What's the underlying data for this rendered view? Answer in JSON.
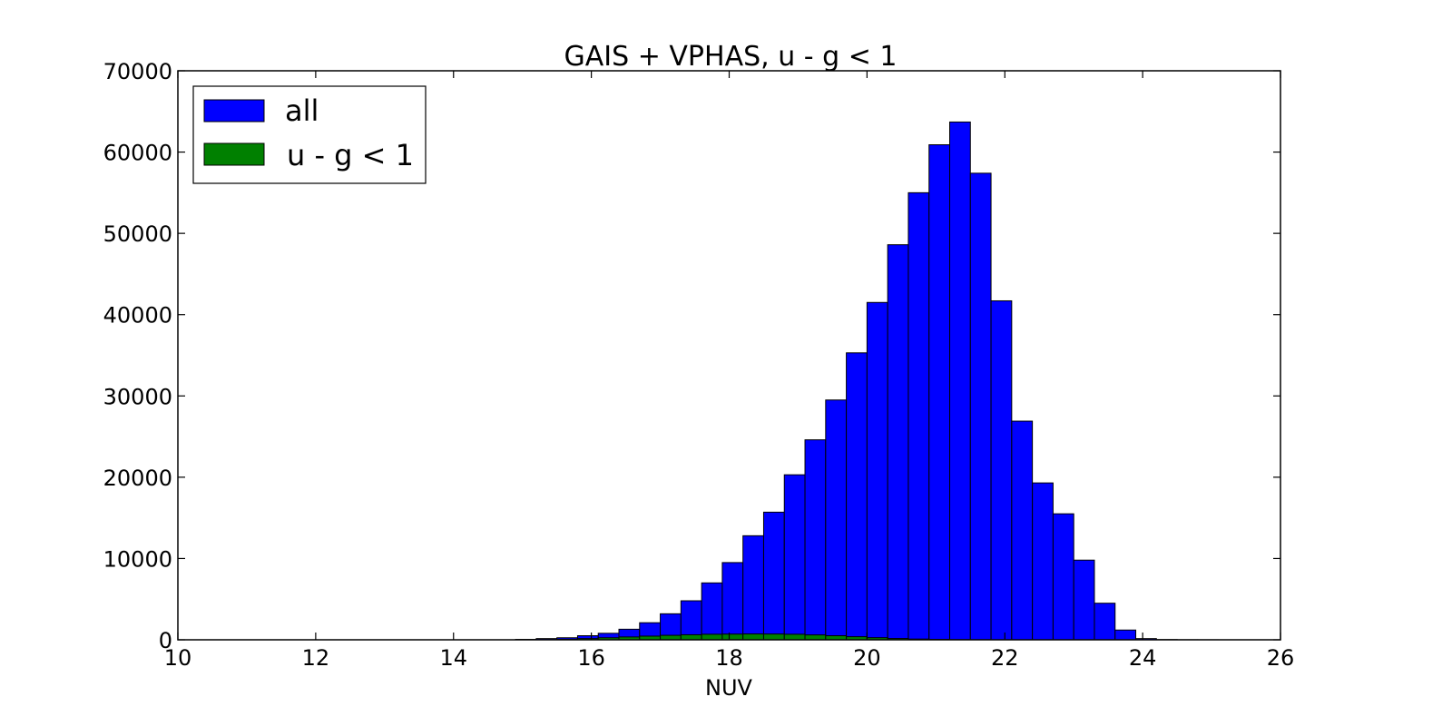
{
  "chart_data": {
    "type": "bar",
    "title": "GAIS + VPHAS, u - g < 1",
    "xlabel": "NUV",
    "ylabel": "",
    "xlim": [
      10,
      26
    ],
    "ylim": [
      0,
      70000
    ],
    "xticks": [
      "10",
      "12",
      "14",
      "16",
      "18",
      "20",
      "22",
      "24",
      "26"
    ],
    "yticks": [
      "0",
      "10000",
      "20000",
      "30000",
      "40000",
      "50000",
      "60000",
      "70000"
    ],
    "grid": false,
    "legend": "top-left",
    "bin_width": 0.3,
    "series": [
      {
        "name": "all",
        "color": "#0000ff",
        "bins": [
          [
            14.9,
            50
          ],
          [
            15.2,
            150
          ],
          [
            15.5,
            250
          ],
          [
            15.8,
            500
          ],
          [
            16.1,
            800
          ],
          [
            16.4,
            1300
          ],
          [
            16.7,
            2100
          ],
          [
            17.0,
            3200
          ],
          [
            17.3,
            4800
          ],
          [
            17.6,
            7000
          ],
          [
            17.9,
            9500
          ],
          [
            18.2,
            12800
          ],
          [
            18.5,
            15700
          ],
          [
            18.8,
            20300
          ],
          [
            19.1,
            24600
          ],
          [
            19.4,
            29500
          ],
          [
            19.7,
            35300
          ],
          [
            20.0,
            41500
          ],
          [
            20.3,
            48600
          ],
          [
            20.6,
            55000
          ],
          [
            20.9,
            60900
          ],
          [
            21.2,
            63700
          ],
          [
            21.5,
            57400
          ],
          [
            21.8,
            41700
          ],
          [
            22.1,
            26900
          ],
          [
            22.4,
            19300
          ],
          [
            22.7,
            15500
          ],
          [
            23.0,
            9800
          ],
          [
            23.3,
            4500
          ],
          [
            23.6,
            1200
          ],
          [
            23.9,
            150
          ],
          [
            24.2,
            30
          ],
          [
            24.5,
            10
          ],
          [
            24.8,
            5
          ]
        ]
      },
      {
        "name": "u - g < 1",
        "color": "#008000",
        "bins": [
          [
            15.2,
            20
          ],
          [
            15.5,
            60
          ],
          [
            15.8,
            150
          ],
          [
            16.1,
            250
          ],
          [
            16.4,
            350
          ],
          [
            16.7,
            450
          ],
          [
            17.0,
            550
          ],
          [
            17.3,
            620
          ],
          [
            17.6,
            680
          ],
          [
            17.9,
            700
          ],
          [
            18.2,
            720
          ],
          [
            18.5,
            710
          ],
          [
            18.8,
            680
          ],
          [
            19.1,
            600
          ],
          [
            19.4,
            500
          ],
          [
            19.7,
            380
          ],
          [
            20.0,
            260
          ],
          [
            20.3,
            160
          ],
          [
            20.6,
            90
          ],
          [
            20.9,
            50
          ],
          [
            21.2,
            20
          ],
          [
            21.5,
            10
          ]
        ]
      }
    ]
  }
}
